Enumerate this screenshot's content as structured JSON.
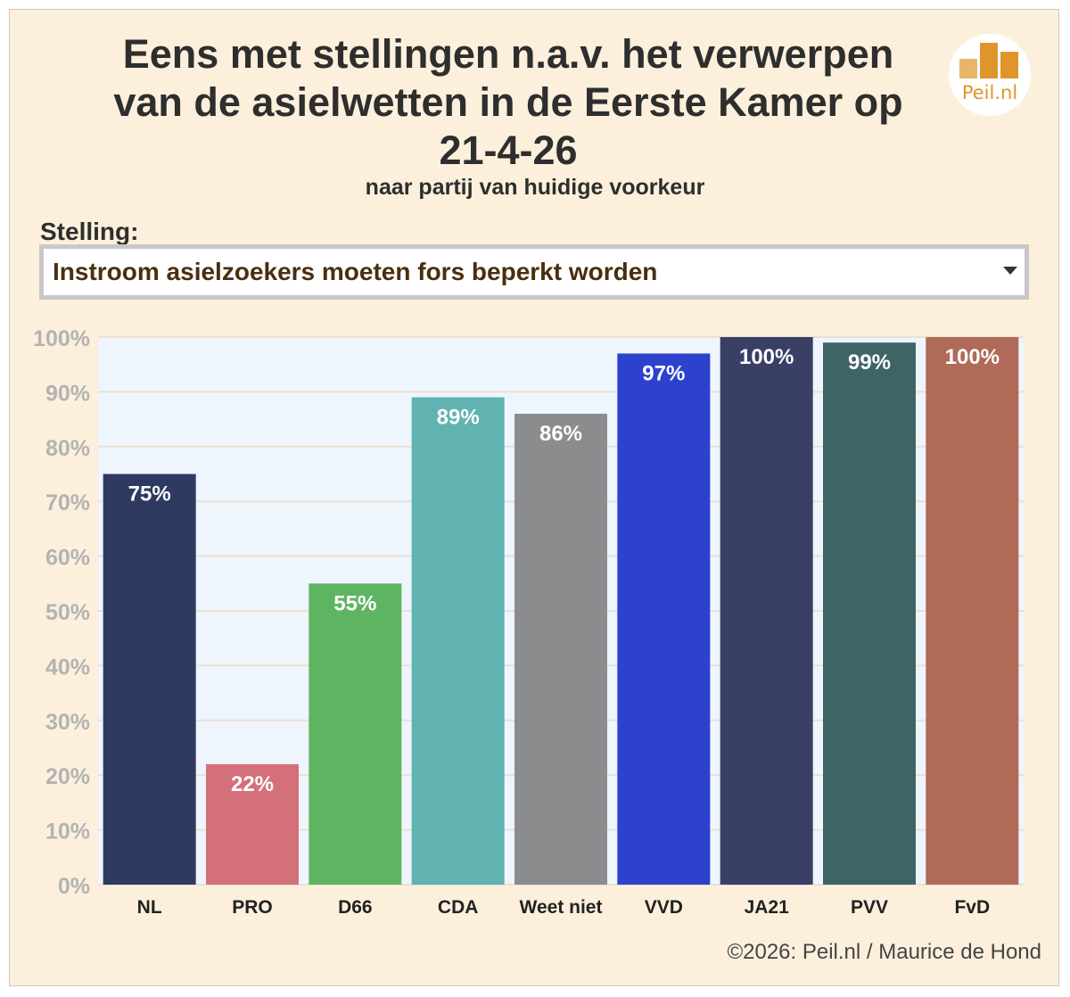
{
  "header": {
    "title_lines": [
      "Eens met stellingen n.a.v. het verwerpen",
      "van de asielwetten in de Eerste Kamer op",
      "21-4-26"
    ],
    "subtitle": "naar partij van huidige voorkeur"
  },
  "logo": {
    "text": "Peil.nl"
  },
  "selector": {
    "label": "Stelling:",
    "value": "Instroom asielzoekers moeten fors beperkt worden"
  },
  "chart_data": {
    "type": "bar",
    "categories": [
      "NL",
      "PRO",
      "D66",
      "CDA",
      "Weet niet",
      "VVD",
      "JA21",
      "PVV",
      "FvD"
    ],
    "values": [
      75,
      22,
      55,
      89,
      86,
      97,
      100,
      99,
      100
    ],
    "data_labels": [
      "75%",
      "22%",
      "55%",
      "89%",
      "86%",
      "97%",
      "100%",
      "99%",
      "100%"
    ],
    "colors": [
      "#2e3a61",
      "#d4707a",
      "#5fb462",
      "#60b3b1",
      "#8b8c8e",
      "#2c41cc",
      "#3a3f66",
      "#3f6465",
      "#b06a58"
    ],
    "y_ticks": [
      "0%",
      "10%",
      "20%",
      "30%",
      "40%",
      "50%",
      "60%",
      "70%",
      "80%",
      "90%",
      "100%"
    ],
    "ylim": [
      0,
      100
    ],
    "grid": true,
    "legend": "none",
    "plot_bg": "#eff5fc"
  },
  "footer": {
    "credit": "©2026: Peil.nl / Maurice de Hond"
  }
}
